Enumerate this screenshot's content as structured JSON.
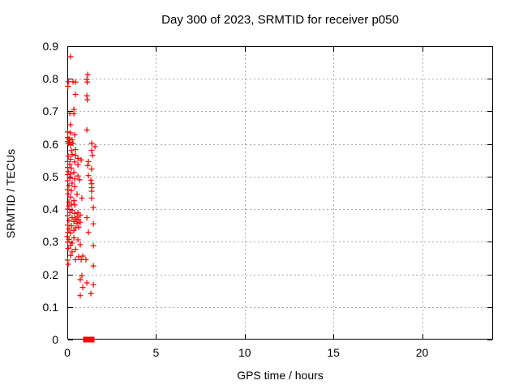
{
  "chart_data": {
    "type": "scatter",
    "title": "Day 300 of 2023, SRMTID for receiver p050",
    "xlabel": "GPS time / hours",
    "ylabel": "SRMTID / TECUs",
    "xlim": [
      0,
      24
    ],
    "ylim": [
      0,
      0.9
    ],
    "x_ticks": [
      0,
      5,
      10,
      15,
      20
    ],
    "y_ticks": [
      0,
      0.1,
      0.2,
      0.3,
      0.4,
      0.5,
      0.6,
      0.7,
      0.8,
      0.9
    ],
    "grid": true,
    "legend_position": "none",
    "colors": {
      "marker": "#ff0000",
      "grid": "#aaaaaa",
      "border": "#000000",
      "background": "#ffffff"
    },
    "series": [
      {
        "marker": "plus",
        "points": [
          [
            0.18,
            0.868
          ],
          [
            1.15,
            0.813
          ],
          [
            1.1,
            0.798
          ],
          [
            1.12,
            0.79
          ],
          [
            0.06,
            0.791
          ],
          [
            0.32,
            0.791
          ],
          [
            0.46,
            0.79
          ],
          [
            0.03,
            0.777
          ],
          [
            0.46,
            0.752
          ],
          [
            1.1,
            0.748
          ],
          [
            1.13,
            0.736
          ],
          [
            0.37,
            0.706
          ],
          [
            0.14,
            0.694
          ],
          [
            0.37,
            0.693
          ],
          [
            0.18,
            0.659
          ],
          [
            1.1,
            0.643
          ],
          [
            0.02,
            0.637
          ],
          [
            0.18,
            0.634
          ],
          [
            0.41,
            0.628
          ],
          [
            0.02,
            0.62
          ],
          [
            0.09,
            0.616
          ],
          [
            0.27,
            0.613
          ],
          [
            0.02,
            0.608
          ],
          [
            0.14,
            0.605
          ],
          [
            0.05,
            0.602
          ],
          [
            0.32,
            0.602
          ],
          [
            0.18,
            0.597
          ],
          [
            1.37,
            0.602
          ],
          [
            1.56,
            0.592
          ],
          [
            0.46,
            0.583
          ],
          [
            0.23,
            0.58
          ],
          [
            1.37,
            0.58
          ],
          [
            0.27,
            0.568
          ],
          [
            0.05,
            0.563
          ],
          [
            0.46,
            0.565
          ],
          [
            1.42,
            0.565
          ],
          [
            0.6,
            0.556
          ],
          [
            0.18,
            0.553
          ],
          [
            0.78,
            0.551
          ],
          [
            0.02,
            0.546
          ],
          [
            0.41,
            0.545
          ],
          [
            1.19,
            0.546
          ],
          [
            0.14,
            0.538
          ],
          [
            0.6,
            0.536
          ],
          [
            1.15,
            0.534
          ],
          [
            0.02,
            0.528
          ],
          [
            0.23,
            0.526
          ],
          [
            1.37,
            0.523
          ],
          [
            0.05,
            0.515
          ],
          [
            0.37,
            0.513
          ],
          [
            0.18,
            0.508
          ],
          [
            0.02,
            0.506
          ],
          [
            0.6,
            0.502
          ],
          [
            1.19,
            0.503
          ],
          [
            0.14,
            0.495
          ],
          [
            0.41,
            0.493
          ],
          [
            0.69,
            0.49
          ],
          [
            0.02,
            0.487
          ],
          [
            1.33,
            0.489
          ],
          [
            0.27,
            0.48
          ],
          [
            1.37,
            0.478
          ],
          [
            0.09,
            0.472
          ],
          [
            0.41,
            0.469
          ],
          [
            1.37,
            0.466
          ],
          [
            0.02,
            0.46
          ],
          [
            0.23,
            0.457
          ],
          [
            1.37,
            0.455
          ],
          [
            0.05,
            0.447
          ],
          [
            0.55,
            0.446
          ],
          [
            0.18,
            0.437
          ],
          [
            0.82,
            0.434
          ],
          [
            1.37,
            0.434
          ],
          [
            0.37,
            0.426
          ],
          [
            0.09,
            0.422
          ],
          [
            0.23,
            0.415
          ],
          [
            0.41,
            0.413
          ],
          [
            0.09,
            0.41
          ],
          [
            1.47,
            0.405
          ],
          [
            0.02,
            0.4
          ],
          [
            0.27,
            0.397
          ],
          [
            0.14,
            0.39
          ],
          [
            0.6,
            0.389
          ],
          [
            0.41,
            0.387
          ],
          [
            0.73,
            0.382
          ],
          [
            0.02,
            0.38
          ],
          [
            0.55,
            0.376
          ],
          [
            0.27,
            0.374
          ],
          [
            1.1,
            0.374
          ],
          [
            0.46,
            0.37
          ],
          [
            0.64,
            0.368
          ],
          [
            0.09,
            0.365
          ],
          [
            0.37,
            0.362
          ],
          [
            0.73,
            0.36
          ],
          [
            0.55,
            0.357
          ],
          [
            1.47,
            0.355
          ],
          [
            0.02,
            0.351
          ],
          [
            0.23,
            0.349
          ],
          [
            0.64,
            0.345
          ],
          [
            0.46,
            0.343
          ],
          [
            0.09,
            0.339
          ],
          [
            0.37,
            0.335
          ],
          [
            0.02,
            0.329
          ],
          [
            0.18,
            0.327
          ],
          [
            1.19,
            0.329
          ],
          [
            0.0,
            0.316
          ],
          [
            0.37,
            0.312
          ],
          [
            0.09,
            0.307
          ],
          [
            0.6,
            0.306
          ],
          [
            0.02,
            0.299
          ],
          [
            0.27,
            0.296
          ],
          [
            0.18,
            0.289
          ],
          [
            0.73,
            0.291
          ],
          [
            1.47,
            0.288
          ],
          [
            0.05,
            0.28
          ],
          [
            0.46,
            0.277
          ],
          [
            0.27,
            0.269
          ],
          [
            0.18,
            0.258
          ],
          [
            0.87,
            0.256
          ],
          [
            0.64,
            0.254
          ],
          [
            0.02,
            0.244
          ],
          [
            0.46,
            0.245
          ],
          [
            0.78,
            0.245
          ],
          [
            1.05,
            0.245
          ],
          [
            0.05,
            0.231
          ],
          [
            1.47,
            0.226
          ],
          [
            0.82,
            0.196
          ],
          [
            0.73,
            0.184
          ],
          [
            1.1,
            0.174
          ],
          [
            1.47,
            0.168
          ],
          [
            0.87,
            0.16
          ],
          [
            1.33,
            0.141
          ],
          [
            0.73,
            0.135
          ]
        ]
      },
      {
        "marker": "filled-square",
        "points": [
          [
            1.05,
            0
          ],
          [
            1.37,
            0
          ]
        ]
      }
    ]
  }
}
